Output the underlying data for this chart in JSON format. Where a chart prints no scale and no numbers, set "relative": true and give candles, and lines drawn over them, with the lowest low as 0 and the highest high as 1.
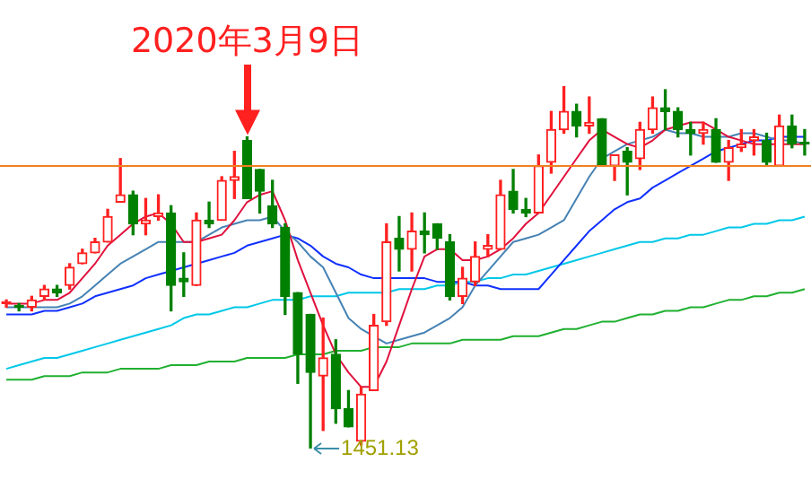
{
  "chart_data": {
    "type": "candlestick",
    "relative": true,
    "categories": [
      null,
      null,
      null,
      null,
      null,
      null,
      null,
      null,
      null,
      null,
      null,
      null,
      null,
      null,
      null,
      null,
      null,
      null,
      null,
      null,
      null,
      null,
      null,
      null,
      null,
      null,
      null,
      null,
      null,
      null,
      null,
      null,
      null,
      null,
      null,
      null,
      null,
      null,
      null,
      null,
      null,
      null,
      null,
      null,
      null,
      null,
      null,
      null,
      null,
      null,
      null,
      null,
      null,
      null,
      null,
      null,
      null,
      null,
      null,
      null,
      null,
      null,
      null,
      null
    ],
    "ohlc": [
      [
        0.4,
        0.41,
        0.39,
        0.4
      ],
      [
        0.39,
        0.4,
        0.38,
        0.39
      ],
      [
        0.39,
        0.42,
        0.38,
        0.41
      ],
      [
        0.42,
        0.45,
        0.41,
        0.44
      ],
      [
        0.44,
        0.45,
        0.42,
        0.43
      ],
      [
        0.45,
        0.51,
        0.44,
        0.5
      ],
      [
        0.51,
        0.55,
        0.51,
        0.54
      ],
      [
        0.54,
        0.58,
        0.54,
        0.57
      ],
      [
        0.57,
        0.66,
        0.57,
        0.64
      ],
      [
        0.68,
        0.8,
        0.68,
        0.7
      ],
      [
        0.7,
        0.71,
        0.59,
        0.62
      ],
      [
        0.62,
        0.69,
        0.59,
        0.63
      ],
      [
        0.64,
        0.7,
        0.63,
        0.65
      ],
      [
        0.65,
        0.67,
        0.38,
        0.45
      ],
      [
        0.47,
        0.54,
        0.42,
        0.46
      ],
      [
        0.45,
        0.65,
        0.45,
        0.63
      ],
      [
        0.63,
        0.68,
        0.61,
        0.62
      ],
      [
        0.63,
        0.75,
        0.63,
        0.74
      ],
      [
        0.74,
        0.82,
        0.69,
        0.75
      ],
      [
        0.85,
        0.86,
        0.69,
        0.69
      ],
      [
        0.77,
        0.77,
        0.65,
        0.71
      ],
      [
        0.67,
        0.74,
        0.61,
        0.62
      ],
      [
        0.61,
        0.62,
        0.37,
        0.42
      ],
      [
        0.43,
        0.43,
        0.18,
        0.26
      ],
      [
        0.37,
        0.37,
        0,
        0.21
      ],
      [
        0.2,
        0.36,
        0.05,
        0.25
      ],
      [
        0.26,
        0.3,
        0.07,
        0.11
      ],
      [
        0.11,
        0.16,
        0.06,
        0.06
      ],
      [
        0.02,
        0.17,
        0.01,
        0.15
      ],
      [
        0.16,
        0.37,
        0.16,
        0.34
      ],
      [
        0.35,
        0.62,
        0.34,
        0.57
      ],
      [
        0.58,
        0.64,
        0.49,
        0.55
      ],
      [
        0.55,
        0.65,
        0.49,
        0.6
      ],
      [
        0.6,
        0.65,
        0.54,
        0.59
      ],
      [
        0.62,
        0.62,
        0.55,
        0.58
      ],
      [
        0.57,
        0.59,
        0.41,
        0.42
      ],
      [
        0.42,
        0.5,
        0.4,
        0.47
      ],
      [
        0.46,
        0.57,
        0.45,
        0.53
      ],
      [
        0.55,
        0.59,
        0.53,
        0.56
      ],
      [
        0.55,
        0.74,
        0.55,
        0.7
      ],
      [
        0.71,
        0.77,
        0.65,
        0.66
      ],
      [
        0.66,
        0.69,
        0.64,
        0.65
      ],
      [
        0.65,
        0.81,
        0.65,
        0.78
      ],
      [
        0.79,
        0.93,
        0.76,
        0.88
      ],
      [
        0.88,
        1,
        0.87,
        0.93
      ],
      [
        0.93,
        0.95,
        0.86,
        0.89
      ],
      [
        0.89,
        0.97,
        0.87,
        0.9
      ],
      [
        0.91,
        0.91,
        0.78,
        0.78
      ],
      [
        0.78,
        0.81,
        0.74,
        0.81
      ],
      [
        0.82,
        0.83,
        0.7,
        0.79
      ],
      [
        0.8,
        0.9,
        0.77,
        0.88
      ],
      [
        0.88,
        0.97,
        0.87,
        0.94
      ],
      [
        0.94,
        0.99,
        0.88,
        0.93
      ],
      [
        0.93,
        0.94,
        0.86,
        0.88
      ],
      [
        0.88,
        0.9,
        0.81,
        0.87
      ],
      [
        0.87,
        0.9,
        0.84,
        0.88
      ],
      [
        0.88,
        0.91,
        0.79,
        0.79
      ],
      [
        0.79,
        0.85,
        0.74,
        0.83
      ],
      [
        0.83,
        0.88,
        0.82,
        0.84
      ],
      [
        0.85,
        0.88,
        0.81,
        0.86
      ],
      [
        0.85,
        0.87,
        0.78,
        0.79
      ],
      [
        0.78,
        0.92,
        0.78,
        0.89
      ],
      [
        0.89,
        0.92,
        0.83,
        0.84
      ],
      [
        0.84,
        0.88,
        0.81,
        0.84
      ]
    ],
    "colors": [
      "#ff2020",
      "#008000",
      "#ff2020",
      "#ff2020",
      "#008000",
      "#ff2020",
      "#ff2020",
      "#ff2020",
      "#ff2020",
      "#ff2020",
      "#008000",
      "#ff2020",
      "#ff2020",
      "#008000",
      "#008000",
      "#ff2020",
      "#008000",
      "#ff2020",
      "#ff2020",
      "#008000",
      "#008000",
      "#008000",
      "#008000",
      "#008000",
      "#008000",
      "#ff2020",
      "#008000",
      "#008000",
      "#ff2020",
      "#ff2020",
      "#ff2020",
      "#008000",
      "#ff2020",
      "#008000",
      "#008000",
      "#008000",
      "#ff2020",
      "#ff2020",
      "#ff2020",
      "#ff2020",
      "#008000",
      "#008000",
      "#ff2020",
      "#ff2020",
      "#ff2020",
      "#008000",
      "#ff2020",
      "#008000",
      "#ff2020",
      "#008000",
      "#ff2020",
      "#ff2020",
      "#008000",
      "#008000",
      "#008000",
      "#ff2020",
      "#008000",
      "#ff2020",
      "#ff2020",
      "#ff2020",
      "#008000",
      "#ff2020",
      "#008000",
      "#008000"
    ],
    "series": [
      {
        "type": "line",
        "color": "#e0103c",
        "values": [
          0.4,
          0.4,
          0.4,
          0.41,
          0.41,
          0.43,
          0.47,
          0.51,
          0.56,
          0.59,
          0.62,
          0.64,
          0.65,
          0.62,
          0.57,
          0.57,
          0.58,
          0.59,
          0.63,
          0.68,
          0.7,
          0.71,
          0.63,
          0.52,
          0.43,
          0.34,
          0.26,
          0.21,
          0.17,
          0.17,
          0.24,
          0.34,
          0.44,
          0.53,
          0.55,
          0.55,
          0.52,
          0.52,
          0.53,
          0.55,
          0.58,
          0.62,
          0.65,
          0.7,
          0.75,
          0.8,
          0.85,
          0.88,
          0.86,
          0.84,
          0.83,
          0.85,
          0.88,
          0.89,
          0.9,
          0.9,
          0.88,
          0.86,
          0.85,
          0.84,
          0.84,
          0.84,
          0.84,
          0.84
        ]
      },
      {
        "type": "line",
        "color": "#4682b4",
        "values": [
          0.39,
          0.39,
          0.39,
          0.39,
          0.39,
          0.4,
          0.42,
          0.45,
          0.48,
          0.51,
          0.53,
          0.55,
          0.57,
          0.57,
          0.57,
          0.57,
          0.59,
          0.61,
          0.62,
          0.63,
          0.63,
          0.64,
          0.6,
          0.57,
          0.53,
          0.5,
          0.43,
          0.36,
          0.33,
          0.31,
          0.29,
          0.3,
          0.31,
          0.32,
          0.34,
          0.36,
          0.39,
          0.45,
          0.49,
          0.53,
          0.57,
          0.58,
          0.59,
          0.61,
          0.63,
          0.69,
          0.75,
          0.8,
          0.82,
          0.84,
          0.85,
          0.86,
          0.88,
          0.87,
          0.87,
          0.86,
          0.86,
          0.86,
          0.87,
          0.87,
          0.86,
          0.85,
          0.85,
          0.84
        ]
      },
      {
        "type": "line",
        "color": "#1030ff",
        "values": [
          0.37,
          0.37,
          0.37,
          0.38,
          0.38,
          0.39,
          0.4,
          0.42,
          0.43,
          0.44,
          0.45,
          0.47,
          0.48,
          0.49,
          0.5,
          0.51,
          0.52,
          0.53,
          0.54,
          0.56,
          0.57,
          0.58,
          0.59,
          0.58,
          0.56,
          0.53,
          0.51,
          0.5,
          0.48,
          0.47,
          0.47,
          0.47,
          0.47,
          0.47,
          0.46,
          0.46,
          0.46,
          0.45,
          0.45,
          0.44,
          0.44,
          0.44,
          0.44,
          0.48,
          0.52,
          0.56,
          0.6,
          0.63,
          0.66,
          0.68,
          0.69,
          0.72,
          0.74,
          0.76,
          0.78,
          0.8,
          0.82,
          0.83,
          0.84,
          0.85,
          0.85,
          0.86,
          0.86,
          0.86
        ]
      },
      {
        "type": "line",
        "color": "#00c8e8",
        "values": [
          0.22,
          0.23,
          0.24,
          0.25,
          0.25,
          0.26,
          0.27,
          0.28,
          0.29,
          0.3,
          0.31,
          0.32,
          0.33,
          0.34,
          0.36,
          0.37,
          0.37,
          0.38,
          0.39,
          0.39,
          0.4,
          0.41,
          0.41,
          0.41,
          0.42,
          0.42,
          0.42,
          0.43,
          0.43,
          0.43,
          0.43,
          0.44,
          0.44,
          0.44,
          0.45,
          0.45,
          0.46,
          0.46,
          0.47,
          0.47,
          0.48,
          0.48,
          0.49,
          0.5,
          0.51,
          0.52,
          0.53,
          0.54,
          0.55,
          0.56,
          0.57,
          0.57,
          0.58,
          0.58,
          0.59,
          0.59,
          0.6,
          0.61,
          0.61,
          0.62,
          0.62,
          0.63,
          0.63,
          0.64
        ]
      },
      {
        "type": "line",
        "color": "#20b030",
        "values": [
          0.19,
          0.19,
          0.19,
          0.2,
          0.2,
          0.2,
          0.21,
          0.21,
          0.21,
          0.22,
          0.22,
          0.22,
          0.22,
          0.23,
          0.23,
          0.23,
          0.24,
          0.24,
          0.24,
          0.25,
          0.25,
          0.25,
          0.25,
          0.26,
          0.26,
          0.26,
          0.27,
          0.27,
          0.27,
          0.28,
          0.28,
          0.28,
          0.29,
          0.29,
          0.29,
          0.29,
          0.3,
          0.3,
          0.3,
          0.3,
          0.31,
          0.31,
          0.31,
          0.32,
          0.33,
          0.33,
          0.34,
          0.35,
          0.35,
          0.36,
          0.37,
          0.37,
          0.38,
          0.38,
          0.39,
          0.39,
          0.4,
          0.41,
          0.41,
          0.42,
          0.42,
          0.43,
          0.43,
          0.44
        ]
      }
    ],
    "ref_lines": [
      {
        "axis": "y",
        "value": 0.78,
        "color": "#f08020"
      }
    ],
    "annotations": [
      "2020年3月9日",
      "1451.13"
    ],
    "legend": false
  }
}
